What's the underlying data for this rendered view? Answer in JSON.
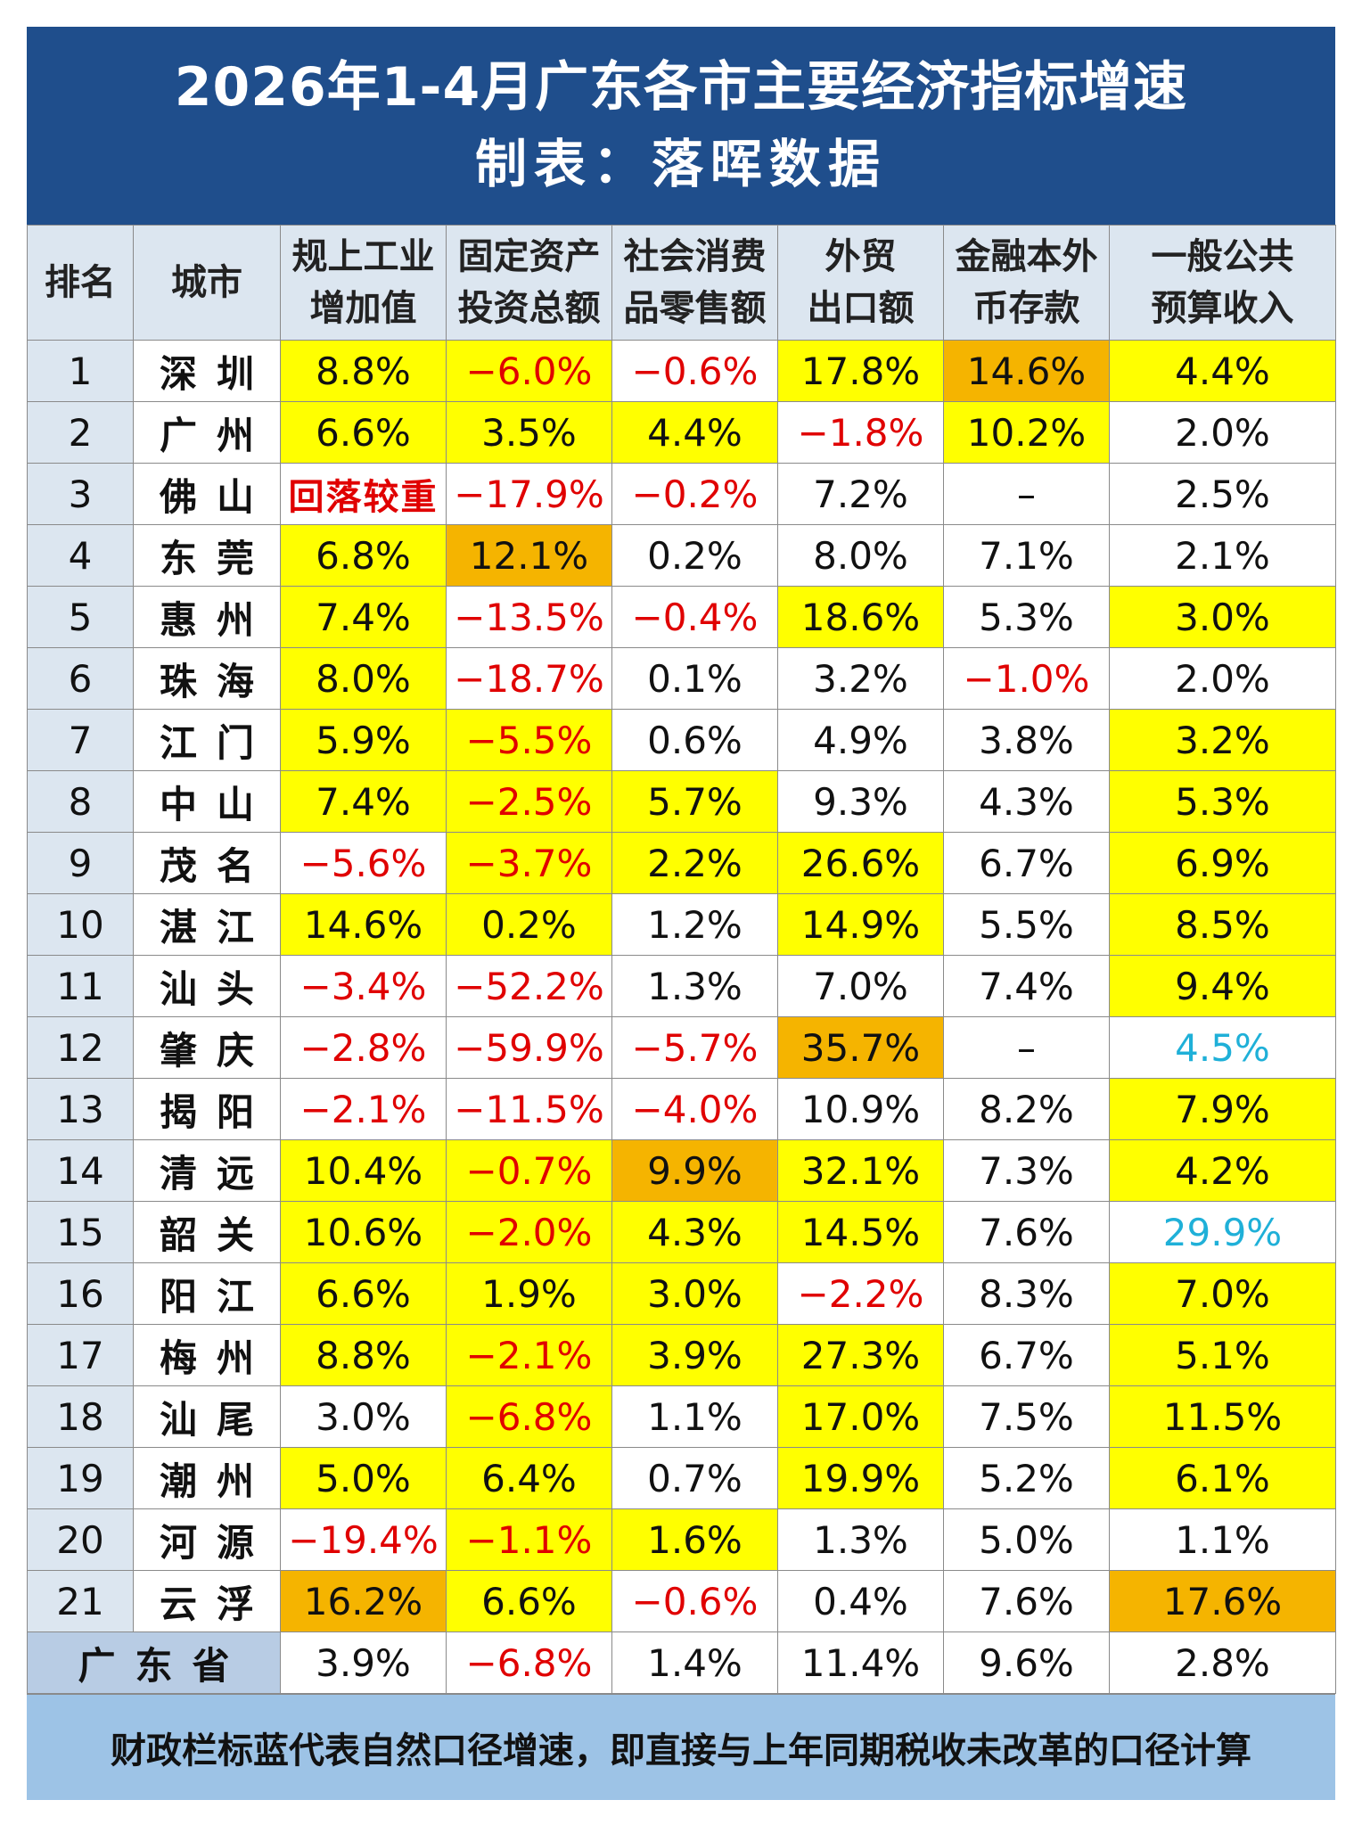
{
  "title": {
    "line1": "2026年1-4月广东各市主要经济指标增速",
    "line2": "制表：落晖数据"
  },
  "headers": [
    {
      "line1": "排名",
      "line2": ""
    },
    {
      "line1": "城市",
      "line2": ""
    },
    {
      "line1": "规上工业",
      "line2": "增加值"
    },
    {
      "line1": "固定资产",
      "line2": "投资总额"
    },
    {
      "line1": "社会消费",
      "line2": "品零售额"
    },
    {
      "line1": "外贸",
      "line2": "出口额"
    },
    {
      "line1": "金融本外",
      "line2": "币存款"
    },
    {
      "line1": "一般公共",
      "line2": "预算收入"
    }
  ],
  "rows": [
    {
      "rank": "1",
      "city": "深圳",
      "cells": [
        {
          "v": "8.8%",
          "s": "y"
        },
        {
          "v": "−6.0%",
          "s": "y",
          "neg": true
        },
        {
          "v": "−0.6%",
          "neg": true
        },
        {
          "v": "17.8%",
          "s": "y"
        },
        {
          "v": "14.6%",
          "s": "o"
        },
        {
          "v": "4.4%",
          "s": "y"
        }
      ]
    },
    {
      "rank": "2",
      "city": "广州",
      "cells": [
        {
          "v": "6.6%",
          "s": "y"
        },
        {
          "v": "3.5%",
          "s": "y"
        },
        {
          "v": "4.4%",
          "s": "y"
        },
        {
          "v": "−1.8%",
          "neg": true
        },
        {
          "v": "10.2%",
          "s": "y"
        },
        {
          "v": "2.0%"
        }
      ]
    },
    {
      "rank": "3",
      "city": "佛山",
      "cells": [
        {
          "v": "回落较重",
          "redtext": true
        },
        {
          "v": "−17.9%",
          "neg": true
        },
        {
          "v": "−0.2%",
          "neg": true
        },
        {
          "v": "7.2%"
        },
        {
          "v": "–"
        },
        {
          "v": "2.5%"
        }
      ]
    },
    {
      "rank": "4",
      "city": "东莞",
      "cells": [
        {
          "v": "6.8%",
          "s": "y"
        },
        {
          "v": "12.1%",
          "s": "o"
        },
        {
          "v": "0.2%"
        },
        {
          "v": "8.0%"
        },
        {
          "v": "7.1%"
        },
        {
          "v": "2.1%"
        }
      ]
    },
    {
      "rank": "5",
      "city": "惠州",
      "cells": [
        {
          "v": "7.4%",
          "s": "y"
        },
        {
          "v": "−13.5%",
          "neg": true
        },
        {
          "v": "−0.4%",
          "neg": true
        },
        {
          "v": "18.6%",
          "s": "y"
        },
        {
          "v": "5.3%"
        },
        {
          "v": "3.0%",
          "s": "y"
        }
      ]
    },
    {
      "rank": "6",
      "city": "珠海",
      "cells": [
        {
          "v": "8.0%",
          "s": "y"
        },
        {
          "v": "−18.7%",
          "neg": true
        },
        {
          "v": "0.1%"
        },
        {
          "v": "3.2%"
        },
        {
          "v": "−1.0%",
          "neg": true
        },
        {
          "v": "2.0%"
        }
      ]
    },
    {
      "rank": "7",
      "city": "江门",
      "cells": [
        {
          "v": "5.9%",
          "s": "y"
        },
        {
          "v": "−5.5%",
          "s": "y",
          "neg": true
        },
        {
          "v": "0.6%"
        },
        {
          "v": "4.9%"
        },
        {
          "v": "3.8%"
        },
        {
          "v": "3.2%",
          "s": "y"
        }
      ]
    },
    {
      "rank": "8",
      "city": "中山",
      "cells": [
        {
          "v": "7.4%",
          "s": "y"
        },
        {
          "v": "−2.5%",
          "s": "y",
          "neg": true
        },
        {
          "v": "5.7%",
          "s": "y"
        },
        {
          "v": "9.3%"
        },
        {
          "v": "4.3%"
        },
        {
          "v": "5.3%",
          "s": "y"
        }
      ]
    },
    {
      "rank": "9",
      "city": "茂名",
      "cells": [
        {
          "v": "−5.6%",
          "neg": true
        },
        {
          "v": "−3.7%",
          "s": "y",
          "neg": true
        },
        {
          "v": "2.2%",
          "s": "y"
        },
        {
          "v": "26.6%",
          "s": "y"
        },
        {
          "v": "6.7%"
        },
        {
          "v": "6.9%",
          "s": "y"
        }
      ]
    },
    {
      "rank": "10",
      "city": "湛江",
      "cells": [
        {
          "v": "14.6%",
          "s": "y"
        },
        {
          "v": "0.2%",
          "s": "y"
        },
        {
          "v": "1.2%"
        },
        {
          "v": "14.9%",
          "s": "y"
        },
        {
          "v": "5.5%"
        },
        {
          "v": "8.5%",
          "s": "y"
        }
      ]
    },
    {
      "rank": "11",
      "city": "汕头",
      "cells": [
        {
          "v": "−3.4%",
          "neg": true
        },
        {
          "v": "−52.2%",
          "neg": true
        },
        {
          "v": "1.3%"
        },
        {
          "v": "7.0%"
        },
        {
          "v": "7.4%"
        },
        {
          "v": "9.4%",
          "s": "y"
        }
      ]
    },
    {
      "rank": "12",
      "city": "肇庆",
      "cells": [
        {
          "v": "−2.8%",
          "neg": true
        },
        {
          "v": "−59.9%",
          "neg": true
        },
        {
          "v": "−5.7%",
          "neg": true
        },
        {
          "v": "35.7%",
          "s": "o"
        },
        {
          "v": "–"
        },
        {
          "v": "4.5%",
          "blue": true
        }
      ]
    },
    {
      "rank": "13",
      "city": "揭阳",
      "cells": [
        {
          "v": "−2.1%",
          "neg": true
        },
        {
          "v": "−11.5%",
          "neg": true
        },
        {
          "v": "−4.0%",
          "neg": true
        },
        {
          "v": "10.9%"
        },
        {
          "v": "8.2%"
        },
        {
          "v": "7.9%",
          "s": "y"
        }
      ]
    },
    {
      "rank": "14",
      "city": "清远",
      "cells": [
        {
          "v": "10.4%",
          "s": "y"
        },
        {
          "v": "−0.7%",
          "s": "y",
          "neg": true
        },
        {
          "v": "9.9%",
          "s": "o"
        },
        {
          "v": "32.1%",
          "s": "y"
        },
        {
          "v": "7.3%"
        },
        {
          "v": "4.2%",
          "s": "y"
        }
      ]
    },
    {
      "rank": "15",
      "city": "韶关",
      "cells": [
        {
          "v": "10.6%",
          "s": "y"
        },
        {
          "v": "−2.0%",
          "s": "y",
          "neg": true
        },
        {
          "v": "4.3%",
          "s": "y"
        },
        {
          "v": "14.5%",
          "s": "y"
        },
        {
          "v": "7.6%"
        },
        {
          "v": "29.9%",
          "blue": true
        }
      ]
    },
    {
      "rank": "16",
      "city": "阳江",
      "cells": [
        {
          "v": "6.6%",
          "s": "y"
        },
        {
          "v": "1.9%",
          "s": "y"
        },
        {
          "v": "3.0%",
          "s": "y"
        },
        {
          "v": "−2.2%",
          "neg": true
        },
        {
          "v": "8.3%"
        },
        {
          "v": "7.0%",
          "s": "y"
        }
      ]
    },
    {
      "rank": "17",
      "city": "梅州",
      "cells": [
        {
          "v": "8.8%",
          "s": "y"
        },
        {
          "v": "−2.1%",
          "s": "y",
          "neg": true
        },
        {
          "v": "3.9%",
          "s": "y"
        },
        {
          "v": "27.3%",
          "s": "y"
        },
        {
          "v": "6.7%"
        },
        {
          "v": "5.1%",
          "s": "y"
        }
      ]
    },
    {
      "rank": "18",
      "city": "汕尾",
      "cells": [
        {
          "v": "3.0%"
        },
        {
          "v": "−6.8%",
          "s": "y",
          "neg": true
        },
        {
          "v": "1.1%"
        },
        {
          "v": "17.0%",
          "s": "y"
        },
        {
          "v": "7.5%"
        },
        {
          "v": "11.5%",
          "s": "y"
        }
      ]
    },
    {
      "rank": "19",
      "city": "潮州",
      "cells": [
        {
          "v": "5.0%",
          "s": "y"
        },
        {
          "v": "6.4%",
          "s": "y"
        },
        {
          "v": "0.7%"
        },
        {
          "v": "19.9%",
          "s": "y"
        },
        {
          "v": "5.2%"
        },
        {
          "v": "6.1%",
          "s": "y"
        }
      ]
    },
    {
      "rank": "20",
      "city": "河源",
      "cells": [
        {
          "v": "−19.4%",
          "neg": true
        },
        {
          "v": "−1.1%",
          "s": "y",
          "neg": true
        },
        {
          "v": "1.6%",
          "s": "y"
        },
        {
          "v": "1.3%"
        },
        {
          "v": "5.0%"
        },
        {
          "v": "1.1%"
        }
      ]
    },
    {
      "rank": "21",
      "city": "云浮",
      "cells": [
        {
          "v": "16.2%",
          "s": "o"
        },
        {
          "v": "6.6%",
          "s": "y"
        },
        {
          "v": "−0.6%",
          "neg": true
        },
        {
          "v": "0.4%"
        },
        {
          "v": "7.6%"
        },
        {
          "v": "17.6%",
          "s": "o"
        }
      ]
    }
  ],
  "province": {
    "label": "广东省",
    "cells": [
      {
        "v": "3.9%"
      },
      {
        "v": "−6.8%",
        "neg": true
      },
      {
        "v": "1.4%"
      },
      {
        "v": "11.4%"
      },
      {
        "v": "9.6%"
      },
      {
        "v": "2.8%"
      }
    ]
  },
  "footer": "财政栏标蓝代表自然口径增速，即直接与上年同期税收未改革的口径计算",
  "colors": {
    "title_bg": "#1f4e8c",
    "header_bg": "#dce6f0",
    "highlight_yellow": "#ffff00",
    "highlight_orange": "#f5b400",
    "negative_text": "#e00000",
    "natural_basis_blue": "#1fb0d8",
    "footer_bg": "#9dc3e6"
  }
}
